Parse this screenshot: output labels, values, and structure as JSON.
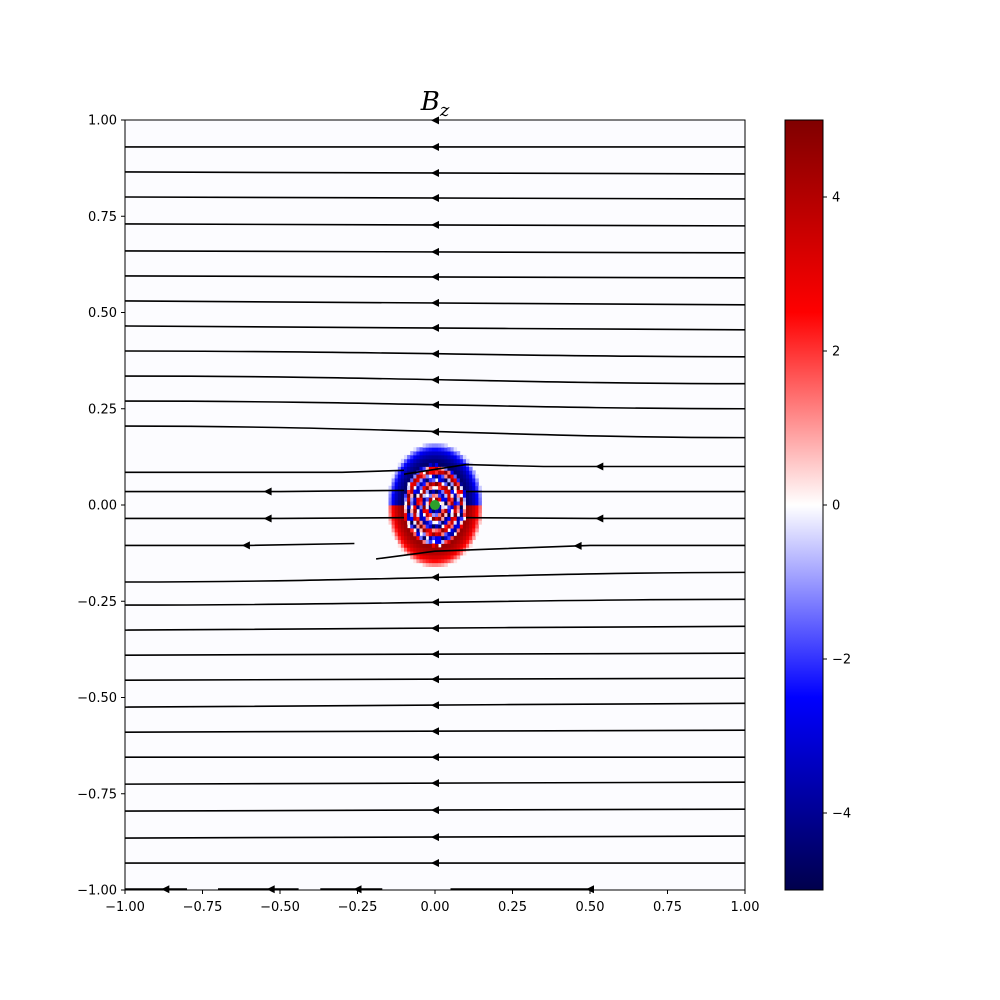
{
  "chart_data": {
    "type": "heatmap",
    "title": "B",
    "title_subscript": "z",
    "xlabel": "",
    "ylabel": "",
    "xlim": [
      -1.0,
      1.0
    ],
    "ylim": [
      -1.0,
      1.0
    ],
    "x_ticks": [
      -1.0,
      -0.75,
      -0.5,
      -0.25,
      0.0,
      0.25,
      0.5,
      0.75,
      1.0
    ],
    "x_tick_labels": [
      "−1.00",
      "−0.75",
      "−0.50",
      "−0.25",
      "0.00",
      "0.25",
      "0.50",
      "0.75",
      "1.00"
    ],
    "y_ticks": [
      1.0,
      0.75,
      0.5,
      0.25,
      0.0,
      -0.25,
      -0.5,
      -0.75,
      -1.0
    ],
    "y_tick_labels": [
      "1.00",
      "0.75",
      "0.50",
      "0.25",
      "0.00",
      "−0.25",
      "−0.50",
      "−0.75",
      "−1.00"
    ],
    "colorbar": {
      "colormap": "seismic",
      "range": [
        -5,
        5
      ],
      "ticks": [
        4,
        2,
        0,
        -2,
        -4
      ],
      "tick_labels": [
        "4",
        "2",
        "0",
        "−2",
        "−4"
      ],
      "colors": [
        "#00004c",
        "#0000ff",
        "#ffffff",
        "#ff0000",
        "#800000"
      ]
    },
    "field_background": "#fcfcff",
    "source_marker": {
      "x": 0.0,
      "y": 0.0,
      "color": "#2ca02c"
    },
    "disturbance": {
      "center": [
        0.0,
        0.0
      ],
      "outer_radius": 0.15,
      "upper_half_sign": "negative",
      "lower_half_sign": "positive",
      "peak_value": 5
    },
    "streamlines": {
      "direction": "negative-x",
      "color": "#000000",
      "full_lines_y": [
        0.93,
        0.865,
        0.8,
        0.73,
        0.66,
        0.595,
        0.53,
        0.465,
        0.4,
        0.335,
        0.27,
        0.205,
        -0.2,
        -0.26,
        -0.325,
        -0.39,
        -0.455,
        -0.525,
        -0.59,
        -0.655,
        -0.725,
        -0.795,
        -0.865,
        -0.93
      ],
      "right_end_y": [
        0.93,
        0.86,
        0.795,
        0.725,
        0.655,
        0.59,
        0.52,
        0.455,
        0.385,
        0.315,
        0.25,
        0.175,
        -0.175,
        -0.245,
        -0.315,
        -0.385,
        -0.45,
        -0.515,
        -0.585,
        -0.655,
        -0.72,
        -0.79,
        -0.86,
        -0.93
      ],
      "partial_lines": [
        {
          "x": [
            1.0,
            0.35,
            0.1,
            -0.1
          ],
          "y": [
            0.1,
            0.1,
            0.105,
            0.08
          ],
          "arrow_x": 0.53
        },
        {
          "x": [
            -0.1,
            -0.3,
            -1.0
          ],
          "y": [
            0.09,
            0.085,
            0.085
          ],
          "arrow_x": null
        },
        {
          "x": [
            -0.1,
            -0.5,
            -1.0
          ],
          "y": [
            0.038,
            0.035,
            0.035
          ],
          "arrow_x": -0.54
        },
        {
          "x": [
            1.0,
            0.1
          ],
          "y": [
            0.035,
            0.035
          ],
          "arrow_x": null
        },
        {
          "x": [
            -0.1,
            -0.5,
            -1.0
          ],
          "y": [
            -0.033,
            -0.035,
            -0.035
          ],
          "arrow_x": -0.54
        },
        {
          "x": [
            1.0,
            0.5,
            0.1
          ],
          "y": [
            -0.035,
            -0.035,
            -0.033
          ],
          "arrow_x": 0.53
        },
        {
          "x": [
            -0.26,
            -0.6,
            -1.0
          ],
          "y": [
            -0.1,
            -0.105,
            -0.105
          ],
          "arrow_x": -0.61
        },
        {
          "x": [
            1.0,
            0.5,
            0.0,
            -0.19
          ],
          "y": [
            -0.105,
            -0.105,
            -0.12,
            -0.14
          ],
          "arrow_x": 0.46
        }
      ],
      "bottom_segments": [
        {
          "x": [
            -0.8,
            -1.0
          ],
          "arrow_x": -0.87
        },
        {
          "x": [
            -0.44,
            -0.7
          ],
          "arrow_x": -0.53
        },
        {
          "x": [
            -0.17,
            -0.37
          ],
          "arrow_x": -0.25
        },
        {
          "x": [
            0.5,
            0.05
          ],
          "arrow_x": 0.5
        }
      ]
    }
  }
}
